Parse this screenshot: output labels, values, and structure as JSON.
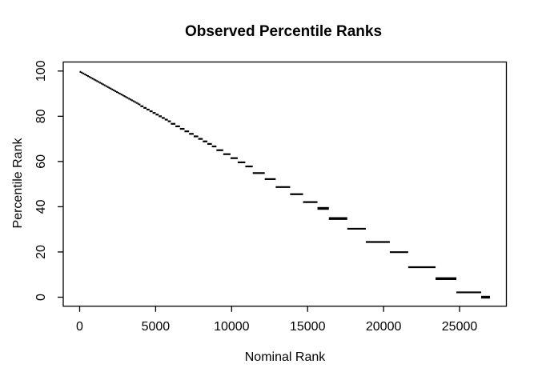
{
  "chart_data": {
    "type": "line",
    "style": "R-base-step-percentile-plot",
    "title": "Observed Percentile Ranks",
    "xlabel": "Nominal Rank",
    "ylabel": "Percentile Rank",
    "xlim": [
      0,
      27000
    ],
    "ylim": [
      0,
      100
    ],
    "x_ticks": [
      0,
      5000,
      10000,
      15000,
      20000,
      25000
    ],
    "x_tick_labels": [
      "0",
      "5000",
      "10000",
      "15000",
      "20000",
      "25000"
    ],
    "y_ticks": [
      0,
      20,
      40,
      60,
      80,
      100
    ],
    "y_tick_labels": [
      "0",
      "20",
      "40",
      "60",
      "80",
      "100"
    ],
    "grid": false,
    "legend": null,
    "n_total": 27000,
    "percentile_rule": "percentile = 100 * (1 - rank_group_end / 27000); tied ranks form horizontal segments",
    "step_boundaries": [
      100,
      200,
      300,
      400,
      500,
      600,
      700,
      800,
      900,
      1000,
      1100,
      1200,
      1300,
      1400,
      1500,
      1600,
      1700,
      1800,
      1900,
      2000,
      2100,
      2200,
      2300,
      2400,
      2500,
      2600,
      2700,
      2800,
      2900,
      3000,
      3100,
      3200,
      3300,
      3400,
      3500,
      3600,
      3700,
      3800,
      3900,
      4000,
      4200,
      4400,
      4600,
      4800,
      5000,
      5200,
      5400,
      5600,
      5800,
      6000,
      6300,
      6600,
      6900,
      7200,
      7500,
      7800,
      8100,
      8400,
      8700,
      9000,
      9450,
      9925,
      10400,
      10900,
      11390,
      12180,
      12900,
      13850,
      14700,
      15650,
      16400,
      17610,
      18830,
      20410,
      21620,
      23420,
      24790,
      26420,
      27000
    ],
    "bold_segment_ends": [
      16400,
      17610,
      24790,
      27000
    ],
    "line_color": "#000000",
    "axis_color": "#000000",
    "background": "#ffffff",
    "key_points": [
      {
        "nominal_rank": 0,
        "percentile": 100
      },
      {
        "nominal_rank": 13500,
        "percentile": 50
      },
      {
        "nominal_rank": 27000,
        "percentile": 0
      }
    ]
  }
}
